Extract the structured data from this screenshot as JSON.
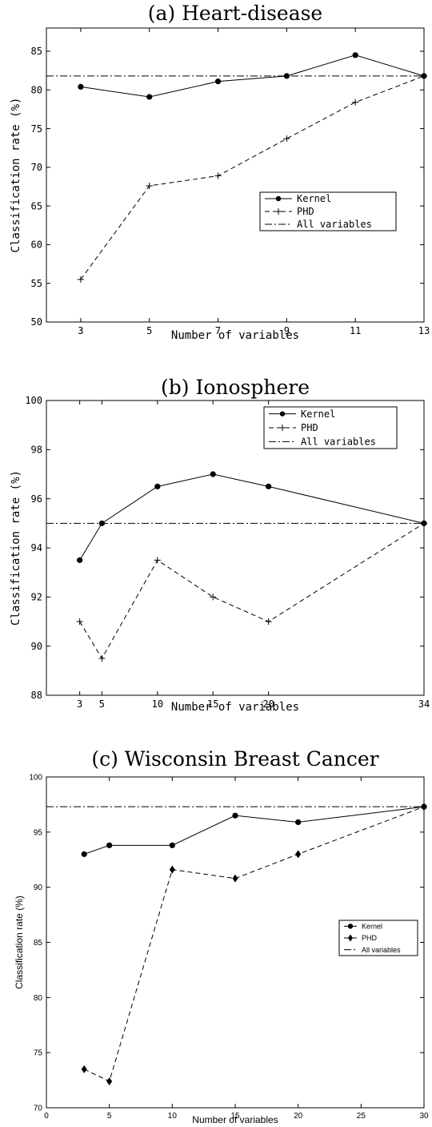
{
  "chart_data": [
    {
      "type": "line",
      "title": "(a) Heart-disease",
      "xlabel": "Number of variables",
      "ylabel": "Classification rate (%)",
      "xlim": [
        2,
        13
      ],
      "ylim": [
        50,
        88
      ],
      "xticks": [
        3,
        5,
        7,
        9,
        11,
        13
      ],
      "yticks": [
        50,
        55,
        60,
        65,
        70,
        75,
        80,
        85
      ],
      "legend_position": "center-right",
      "series": [
        {
          "name": "Kernel",
          "style": "solid",
          "marker": "circle",
          "x": [
            3,
            5,
            7,
            9,
            11,
            13
          ],
          "y": [
            80.4,
            79.1,
            81.1,
            81.8,
            84.5,
            81.8
          ]
        },
        {
          "name": "PHD",
          "style": "dashed",
          "marker": "plus",
          "x": [
            3,
            5,
            7,
            9,
            11,
            13
          ],
          "y": [
            55.5,
            67.6,
            68.9,
            73.7,
            78.4,
            81.8
          ]
        },
        {
          "name": "All variables",
          "style": "dashdot",
          "marker": "none",
          "x": [
            2,
            13
          ],
          "y": [
            81.8,
            81.8
          ]
        }
      ]
    },
    {
      "type": "line",
      "title": "(b) Ionosphere",
      "xlabel": "Number of variables",
      "ylabel": "Classification rate (%)",
      "xlim": [
        0,
        34
      ],
      "ylim": [
        88,
        100
      ],
      "xticks": [
        3,
        5,
        10,
        15,
        20,
        34
      ],
      "yticks": [
        88,
        90,
        92,
        94,
        96,
        98,
        100
      ],
      "legend_position": "top-right",
      "series": [
        {
          "name": "Kernel",
          "style": "solid",
          "marker": "circle",
          "x": [
            3,
            5,
            10,
            15,
            20,
            34
          ],
          "y": [
            93.5,
            95.0,
            96.5,
            97.0,
            96.5,
            95.0
          ]
        },
        {
          "name": "PHD",
          "style": "dashed",
          "marker": "plus",
          "x": [
            3,
            5,
            10,
            15,
            20,
            34
          ],
          "y": [
            91.0,
            89.5,
            93.5,
            92.0,
            91.0,
            95.0
          ]
        },
        {
          "name": "All variables",
          "style": "dashdot",
          "marker": "none",
          "x": [
            0,
            34
          ],
          "y": [
            95.0,
            95.0
          ]
        }
      ]
    },
    {
      "type": "line",
      "title": "(c) Wisconsin Breast Cancer",
      "xlabel": "Number of variables",
      "ylabel": "Classification rate (%)",
      "xlim": [
        0,
        30
      ],
      "ylim": [
        70,
        100
      ],
      "xticks": [
        0,
        5,
        10,
        15,
        20,
        25,
        30
      ],
      "yticks": [
        70,
        75,
        80,
        85,
        90,
        95,
        100
      ],
      "legend_position": "center-right",
      "series": [
        {
          "name": "Kernel",
          "style": "solid",
          "marker": "circle",
          "x": [
            3,
            5,
            10,
            15,
            20,
            30
          ],
          "y": [
            93.0,
            93.8,
            93.8,
            96.5,
            95.9,
            97.3
          ]
        },
        {
          "name": "PHD",
          "style": "dashed",
          "marker": "diamond",
          "x": [
            3,
            5,
            10,
            15,
            20,
            30
          ],
          "y": [
            73.5,
            72.4,
            91.6,
            90.8,
            93.0,
            97.3
          ]
        },
        {
          "name": "All variables",
          "style": "dashdot",
          "marker": "none",
          "x": [
            0,
            30
          ],
          "y": [
            97.3,
            97.3
          ]
        }
      ]
    }
  ]
}
